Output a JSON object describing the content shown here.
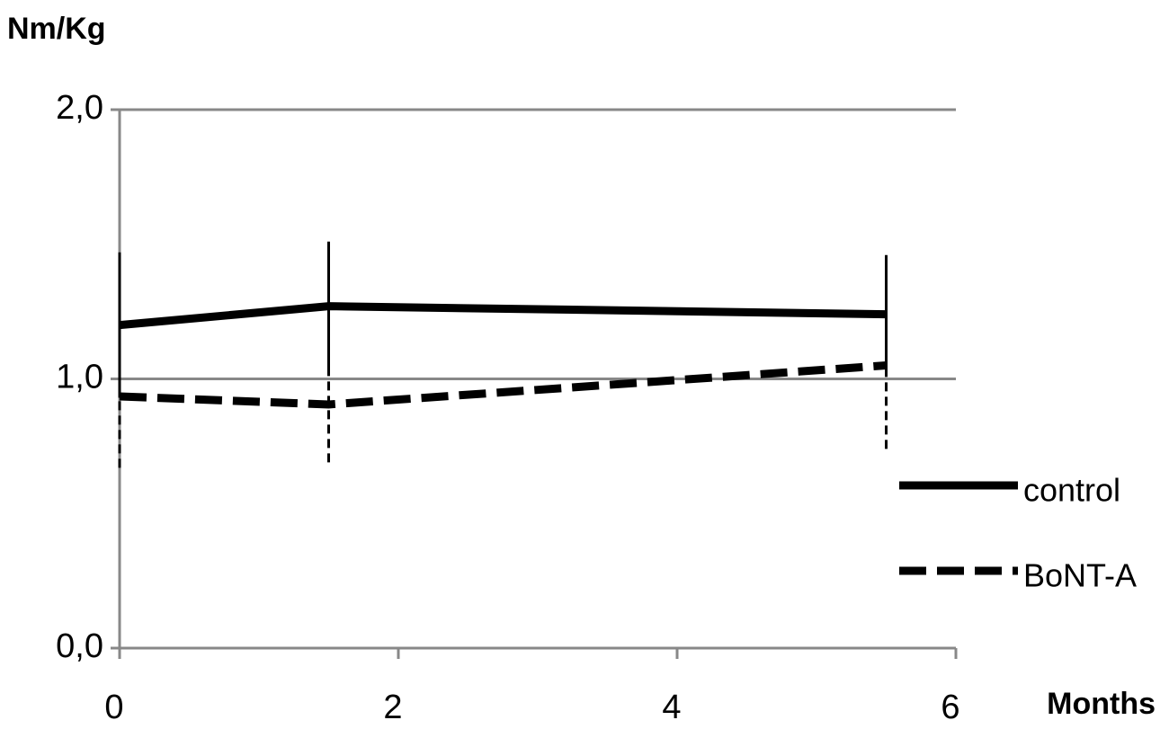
{
  "chart_data": {
    "type": "line",
    "y_label": "Nm/Kg",
    "x_label": "Months",
    "x": [
      0,
      1.5,
      5.5
    ],
    "series": [
      {
        "name": "control",
        "color": "#000000",
        "dash": false,
        "values": [
          1.2,
          1.27,
          1.24
        ],
        "errors": [
          0.27,
          0.24,
          0.22
        ]
      },
      {
        "name": "BoNT-A",
        "color": "#000000",
        "dash": true,
        "values": [
          0.935,
          0.905,
          1.05
        ],
        "errors": [
          0.265,
          0.215,
          0.31
        ]
      }
    ],
    "xlim": [
      0,
      6
    ],
    "xticks": [
      0,
      2,
      4,
      6
    ],
    "ylim": [
      0,
      2
    ],
    "yticks": [
      {
        "value": 0,
        "label": "0,0"
      },
      {
        "value": 1,
        "label": "1,0"
      },
      {
        "value": 2,
        "label": "2,0"
      }
    ],
    "grid": true,
    "legend": "right"
  }
}
